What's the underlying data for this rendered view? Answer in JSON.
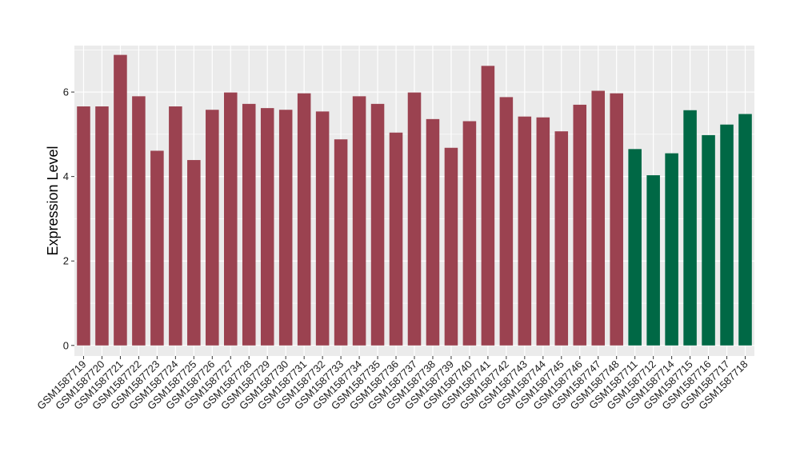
{
  "chart_data": {
    "type": "bar",
    "title": "",
    "xlabel": "",
    "ylabel": "Expression Level",
    "ylim": [
      -0.25,
      7.1
    ],
    "yticks": [
      0,
      2,
      4,
      6
    ],
    "grid": true,
    "legend": "none",
    "colors": {
      "panel_bg": "#EBEBEB",
      "gridline": "#FFFFFF",
      "group_a": "#9B4250",
      "group_b": "#006845"
    },
    "categories": [
      "GSM1587719",
      "GSM1587720",
      "GSM1587721",
      "GSM1587722",
      "GSM1587723",
      "GSM1587724",
      "GSM1587725",
      "GSM1587726",
      "GSM1587727",
      "GSM1587728",
      "GSM1587729",
      "GSM1587730",
      "GSM1587731",
      "GSM1587732",
      "GSM1587733",
      "GSM1587734",
      "GSM1587735",
      "GSM1587736",
      "GSM1587737",
      "GSM1587738",
      "GSM1587739",
      "GSM1587740",
      "GSM1587741",
      "GSM1587742",
      "GSM1587743",
      "GSM1587744",
      "GSM1587745",
      "GSM1587746",
      "GSM1587747",
      "GSM1587748",
      "GSM1587711",
      "GSM1587712",
      "GSM1587714",
      "GSM1587715",
      "GSM1587716",
      "GSM1587717",
      "GSM1587718"
    ],
    "values": [
      5.66,
      5.66,
      6.88,
      5.9,
      4.61,
      5.66,
      4.39,
      5.58,
      5.99,
      5.72,
      5.62,
      5.58,
      5.97,
      5.54,
      4.88,
      5.9,
      5.72,
      5.04,
      5.99,
      5.36,
      4.68,
      5.31,
      6.62,
      5.88,
      5.42,
      5.4,
      5.07,
      5.7,
      6.03,
      5.97,
      4.65,
      4.03,
      4.55,
      5.57,
      4.98,
      5.23,
      5.48
    ],
    "groups": [
      "a",
      "a",
      "a",
      "a",
      "a",
      "a",
      "a",
      "a",
      "a",
      "a",
      "a",
      "a",
      "a",
      "a",
      "a",
      "a",
      "a",
      "a",
      "a",
      "a",
      "a",
      "a",
      "a",
      "a",
      "a",
      "a",
      "a",
      "a",
      "a",
      "a",
      "b",
      "b",
      "b",
      "b",
      "b",
      "b",
      "b"
    ]
  }
}
